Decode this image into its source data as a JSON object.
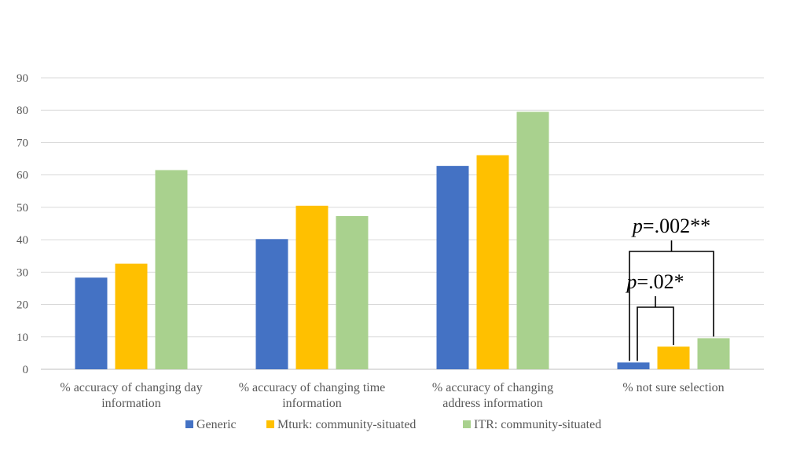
{
  "colors": {
    "generic": "#4472C4",
    "mturk": "#FFC000",
    "itr": "#A9D18E"
  },
  "chart_data": {
    "type": "bar",
    "title": "",
    "xlabel": "",
    "ylabel": "",
    "ylim": [
      0,
      90
    ],
    "yticks": [
      0,
      10,
      20,
      30,
      40,
      50,
      60,
      70,
      80,
      90
    ],
    "grid": true,
    "legend_position": "bottom",
    "categories": [
      [
        "% accuracy of changing day",
        "information"
      ],
      [
        "% accuracy of changing time",
        "information"
      ],
      [
        "% accuracy of changing",
        "address information"
      ],
      [
        "% not sure selection"
      ]
    ],
    "series": [
      {
        "name": "Generic",
        "color": "#4472C4",
        "values": [
          28.3,
          40.2,
          62.8,
          2.1
        ]
      },
      {
        "name": "Mturk: community-situated",
        "color": "#FFC000",
        "values": [
          32.6,
          50.5,
          66.1,
          7.0
        ]
      },
      {
        "name": "ITR: community-situated",
        "color": "#A9D18E",
        "values": [
          61.5,
          47.3,
          79.5,
          9.6
        ]
      }
    ],
    "annotations": [
      {
        "text_italic": "p",
        "text": "=.002**",
        "category_index": 3,
        "from_series": 0,
        "to_series": 2
      },
      {
        "text_italic": "p",
        "text": "=.02*",
        "category_index": 3,
        "from_series": 0,
        "to_series": 1
      }
    ]
  }
}
